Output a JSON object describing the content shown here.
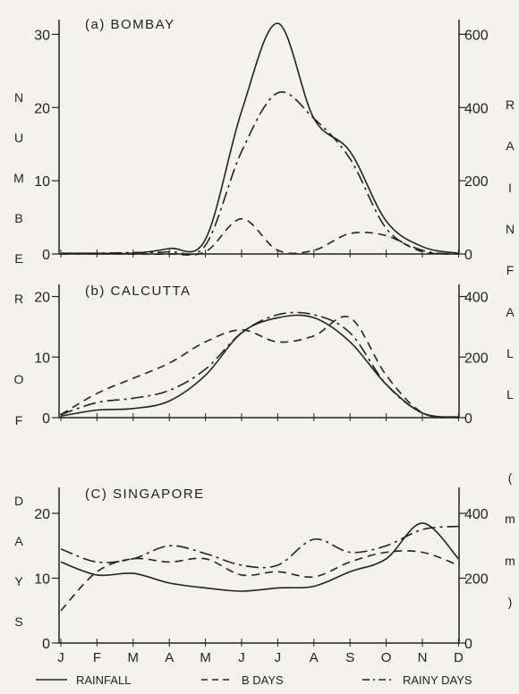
{
  "y_label_left": "NUMBER OF DAYS",
  "y_label_right": "RAINFALL (mm)",
  "legend": {
    "rainfall": "RAINFALL",
    "b_days": "B DAYS",
    "rainy_days": "RAINY DAYS"
  },
  "colors": {
    "ink": "#222222",
    "paper": "#f4f2ee"
  },
  "chart_data": [
    {
      "type": "line",
      "title": "(a) BOMBAY",
      "categories": [
        "J",
        "F",
        "M",
        "A",
        "M",
        "J",
        "J",
        "A",
        "S",
        "O",
        "N",
        "D"
      ],
      "left_axis": {
        "ticks": [
          0,
          10,
          20,
          30
        ],
        "ylim": [
          0,
          32
        ]
      },
      "right_axis": {
        "ticks": [
          0,
          200,
          400,
          600
        ],
        "ylim": [
          0,
          640
        ]
      },
      "series": [
        {
          "name": "RAINFALL",
          "axis": "right",
          "style": "solid",
          "values": [
            2,
            2,
            2,
            15,
            40,
            390,
            630,
            370,
            280,
            90,
            20,
            2
          ]
        },
        {
          "name": "B DAYS",
          "axis": "left",
          "style": "dashed",
          "values": [
            0,
            0,
            0,
            0,
            0.3,
            4.8,
            0.5,
            0.5,
            2.8,
            2.5,
            0.3,
            0
          ]
        },
        {
          "name": "RAINY DAYS",
          "axis": "left",
          "style": "dashdot",
          "values": [
            0,
            0.1,
            0.2,
            0.3,
            1.2,
            14,
            22,
            18.5,
            13,
            3.5,
            0.5,
            0
          ]
        }
      ]
    },
    {
      "type": "line",
      "title": "(b) CALCUTTA",
      "categories": [
        "J",
        "F",
        "M",
        "A",
        "M",
        "J",
        "J",
        "A",
        "S",
        "O",
        "N",
        "D"
      ],
      "left_axis": {
        "ticks": [
          0,
          10,
          20
        ],
        "ylim": [
          0,
          22
        ]
      },
      "right_axis": {
        "ticks": [
          0,
          200,
          400
        ],
        "ylim": [
          0,
          440
        ]
      },
      "series": [
        {
          "name": "RAINFALL",
          "axis": "right",
          "style": "solid",
          "values": [
            5,
            25,
            30,
            55,
            140,
            280,
            330,
            330,
            250,
            110,
            15,
            2
          ]
        },
        {
          "name": "B DAYS",
          "axis": "left",
          "style": "dashed",
          "values": [
            0.5,
            4,
            6.5,
            9,
            12.5,
            14.5,
            12.5,
            13.5,
            16.5,
            7,
            0.8,
            0
          ]
        },
        {
          "name": "RAINY DAYS",
          "axis": "left",
          "style": "dashdot",
          "values": [
            0.5,
            2.5,
            3.2,
            4.5,
            8,
            14,
            17,
            17,
            14,
            5.5,
            0.8,
            0
          ]
        }
      ]
    },
    {
      "type": "line",
      "title": "(C) SINGAPORE",
      "categories": [
        "J",
        "F",
        "M",
        "A",
        "M",
        "J",
        "J",
        "A",
        "S",
        "O",
        "N",
        "D"
      ],
      "left_axis": {
        "ticks": [
          0,
          10,
          20
        ],
        "ylim": [
          0,
          24
        ]
      },
      "right_axis": {
        "ticks": [
          0,
          200,
          400
        ],
        "ylim": [
          0,
          480
        ]
      },
      "series": [
        {
          "name": "RAINFALL",
          "axis": "right",
          "style": "solid",
          "values": [
            250,
            210,
            215,
            185,
            170,
            160,
            170,
            175,
            220,
            260,
            370,
            260
          ]
        },
        {
          "name": "B DAYS",
          "axis": "left",
          "style": "dashed",
          "values": [
            5,
            11,
            13,
            12.5,
            13,
            10.5,
            11,
            10.2,
            12.5,
            14,
            14,
            12
          ]
        },
        {
          "name": "RAINY DAYS",
          "axis": "left",
          "style": "dashdot",
          "values": [
            14.5,
            12.5,
            13,
            15,
            13.8,
            12,
            12,
            16,
            14,
            15,
            17.5,
            18
          ]
        }
      ]
    }
  ]
}
